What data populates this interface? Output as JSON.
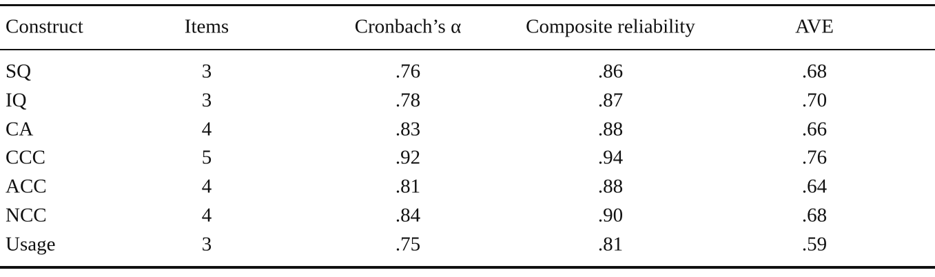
{
  "table": {
    "header": [
      "Construct",
      "Items",
      "Cronbach’s α",
      "Composite reliability",
      "AVE"
    ],
    "rows": [
      [
        "SQ",
        "3",
        ".76",
        ".86",
        ".68"
      ],
      [
        "IQ",
        "3",
        ".78",
        ".87",
        ".70"
      ],
      [
        "CA",
        "4",
        ".83",
        ".88",
        ".66"
      ],
      [
        "CCC",
        "5",
        ".92",
        ".94",
        ".76"
      ],
      [
        "ACC",
        "4",
        ".81",
        ".88",
        ".64"
      ],
      [
        "NCC",
        "4",
        ".84",
        ".90",
        ".68"
      ],
      [
        "Usage",
        "3",
        ".75",
        ".81",
        ".59"
      ]
    ]
  }
}
